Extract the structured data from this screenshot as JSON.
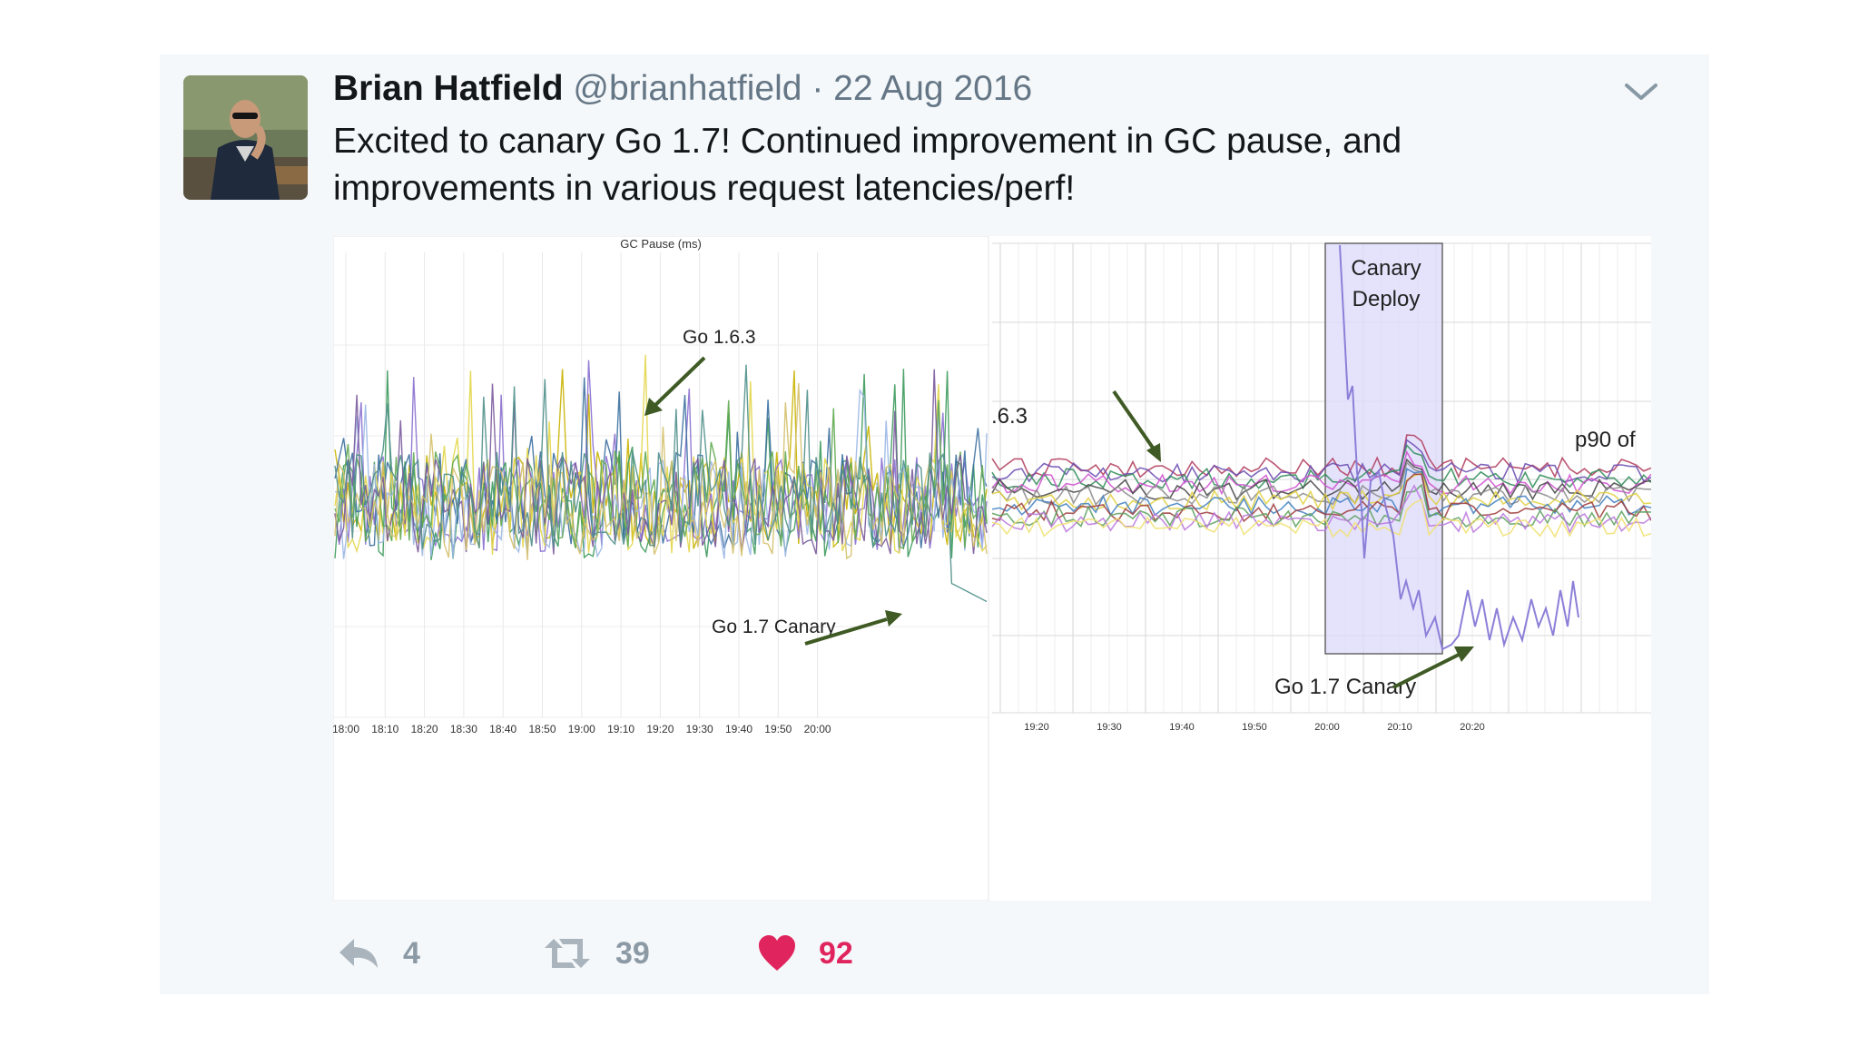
{
  "tweet": {
    "author_name": "Brian Hatfield",
    "author_handle": "@brianhatfield",
    "separator": "·",
    "date": "22 Aug 2016",
    "text": "Excited to canary Go 1.7! Continued improvement in GC pause, and improvements in various request latencies/perf!",
    "menu_icon": "chevron-down-icon"
  },
  "media": {
    "left_chart": {
      "title": "GC Pause (ms)",
      "old_label": "Go 1.6.3",
      "new_label": "Go 1.7 Canary",
      "x_ticks": [
        "18:00",
        "18:10",
        "18:20",
        "18:30",
        "18:40",
        "18:50",
        "19:00",
        "19:10",
        "19:20",
        "19:30",
        "19:40",
        "19:50",
        "20:00"
      ]
    },
    "right_chart": {
      "old_label_fragment": ".6.3",
      "metric_label_fragment": "p90 of",
      "deploy_label_line1": "Canary",
      "deploy_label_line2": "Deploy",
      "new_label": "Go 1.7 Canary",
      "x_ticks": [
        "19:20",
        "19:30",
        "19:40",
        "19:50",
        "20:00",
        "20:10",
        "20:20"
      ]
    },
    "colors": {
      "arrow": "#3f5a24",
      "deploy_band": "#dcd9fb"
    }
  },
  "actions": {
    "reply": {
      "icon": "reply-icon",
      "count": "4"
    },
    "retweet": {
      "icon": "retweet-icon",
      "count": "39"
    },
    "like": {
      "icon": "heart-icon",
      "count": "92",
      "color": "#e0245e"
    }
  }
}
